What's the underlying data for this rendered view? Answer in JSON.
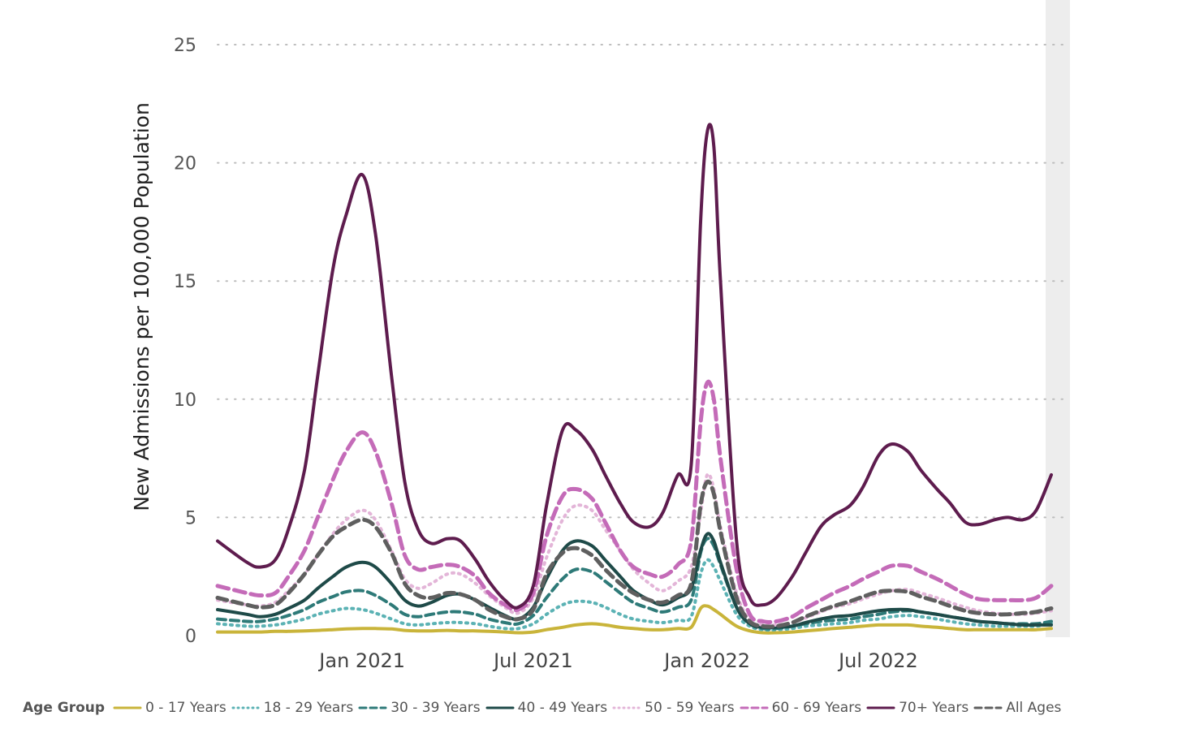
{
  "chart_data": {
    "type": "line",
    "title": "",
    "xlabel": "",
    "ylabel": "New Admissions per 100,000 Population",
    "ylim": [
      0,
      25
    ],
    "yticks": [
      0,
      5,
      10,
      15,
      20,
      25
    ],
    "xlim": [
      "2020-08-01",
      "2022-12-31"
    ],
    "xticks": [
      {
        "label": "Jan 2021",
        "date": "2021-01-01"
      },
      {
        "label": "Jul 2021",
        "date": "2021-07-01"
      },
      {
        "label": "Jan 2022",
        "date": "2022-01-01"
      },
      {
        "label": "Jul 2022",
        "date": "2022-07-01"
      }
    ],
    "grid": "horizontal dotted",
    "legend_position": "bottom",
    "legend_title": "Age Group",
    "x": [
      "2020-08-01",
      "2020-09-01",
      "2020-09-15",
      "2020-10-01",
      "2020-10-15",
      "2020-11-01",
      "2020-11-15",
      "2020-12-01",
      "2020-12-15",
      "2021-01-01",
      "2021-01-15",
      "2021-02-01",
      "2021-02-15",
      "2021-03-01",
      "2021-03-15",
      "2021-04-01",
      "2021-04-15",
      "2021-05-01",
      "2021-05-15",
      "2021-06-01",
      "2021-06-15",
      "2021-07-01",
      "2021-07-15",
      "2021-08-01",
      "2021-08-15",
      "2021-09-01",
      "2021-09-15",
      "2021-10-01",
      "2021-10-15",
      "2021-11-01",
      "2021-11-15",
      "2021-12-01",
      "2021-12-15",
      "2021-12-25",
      "2022-01-01",
      "2022-01-08",
      "2022-01-15",
      "2022-02-01",
      "2022-02-15",
      "2022-03-01",
      "2022-03-15",
      "2022-04-01",
      "2022-04-15",
      "2022-05-01",
      "2022-05-15",
      "2022-06-01",
      "2022-06-15",
      "2022-07-01",
      "2022-07-15",
      "2022-08-01",
      "2022-08-15",
      "2022-09-01",
      "2022-09-15",
      "2022-10-01",
      "2022-10-15",
      "2022-11-01",
      "2022-11-15",
      "2022-12-01",
      "2022-12-15",
      "2022-12-31"
    ],
    "series": [
      {
        "name": "0 - 17 Years",
        "color": "#C9B43A",
        "dash": "solid",
        "width": 4,
        "values": [
          0.15,
          0.15,
          0.15,
          0.18,
          0.18,
          0.2,
          0.22,
          0.25,
          0.28,
          0.3,
          0.3,
          0.28,
          0.22,
          0.2,
          0.2,
          0.22,
          0.2,
          0.2,
          0.18,
          0.15,
          0.12,
          0.15,
          0.25,
          0.35,
          0.45,
          0.5,
          0.45,
          0.35,
          0.3,
          0.25,
          0.25,
          0.3,
          0.35,
          1.15,
          1.25,
          1.1,
          0.9,
          0.4,
          0.2,
          0.12,
          0.12,
          0.15,
          0.2,
          0.25,
          0.3,
          0.35,
          0.4,
          0.45,
          0.45,
          0.45,
          0.4,
          0.35,
          0.3,
          0.25,
          0.25,
          0.25,
          0.25,
          0.25,
          0.25,
          0.3
        ]
      },
      {
        "name": "18 - 29 Years",
        "color": "#5BB2B4",
        "dash": "2 6",
        "width": 4,
        "values": [
          0.5,
          0.4,
          0.4,
          0.45,
          0.55,
          0.7,
          0.9,
          1.05,
          1.15,
          1.1,
          0.95,
          0.7,
          0.5,
          0.45,
          0.5,
          0.55,
          0.55,
          0.5,
          0.4,
          0.3,
          0.3,
          0.5,
          0.9,
          1.3,
          1.45,
          1.4,
          1.2,
          0.9,
          0.7,
          0.6,
          0.55,
          0.65,
          0.8,
          2.6,
          3.2,
          2.9,
          2.3,
          0.9,
          0.4,
          0.25,
          0.25,
          0.3,
          0.4,
          0.45,
          0.5,
          0.55,
          0.65,
          0.7,
          0.8,
          0.85,
          0.8,
          0.7,
          0.6,
          0.5,
          0.45,
          0.4,
          0.4,
          0.4,
          0.4,
          0.5
        ]
      },
      {
        "name": "30 - 39 Years",
        "color": "#2E7A78",
        "dash": "10 6",
        "width": 4,
        "values": [
          0.7,
          0.6,
          0.6,
          0.7,
          0.85,
          1.1,
          1.4,
          1.65,
          1.85,
          1.9,
          1.7,
          1.3,
          0.9,
          0.8,
          0.9,
          1.0,
          1.0,
          0.9,
          0.7,
          0.55,
          0.5,
          0.85,
          1.6,
          2.4,
          2.8,
          2.7,
          2.3,
          1.8,
          1.4,
          1.15,
          1.0,
          1.2,
          1.5,
          3.5,
          4.1,
          3.8,
          3.0,
          1.2,
          0.5,
          0.3,
          0.3,
          0.4,
          0.5,
          0.6,
          0.65,
          0.7,
          0.8,
          0.9,
          1.0,
          1.05,
          1.0,
          0.9,
          0.8,
          0.7,
          0.6,
          0.55,
          0.5,
          0.5,
          0.5,
          0.6
        ]
      },
      {
        "name": "40 - 49 Years",
        "color": "#1E4A48",
        "dash": "solid",
        "width": 4,
        "values": [
          1.1,
          0.9,
          0.8,
          0.9,
          1.15,
          1.5,
          2.0,
          2.5,
          2.9,
          3.1,
          2.9,
          2.2,
          1.5,
          1.25,
          1.4,
          1.7,
          1.75,
          1.5,
          1.2,
          0.85,
          0.7,
          1.2,
          2.4,
          3.6,
          4.0,
          3.8,
          3.2,
          2.5,
          1.9,
          1.5,
          1.3,
          1.6,
          2.0,
          3.6,
          4.3,
          4.0,
          3.1,
          1.2,
          0.5,
          0.35,
          0.35,
          0.4,
          0.55,
          0.7,
          0.8,
          0.85,
          0.95,
          1.05,
          1.1,
          1.1,
          1.0,
          0.9,
          0.8,
          0.7,
          0.6,
          0.55,
          0.5,
          0.45,
          0.45,
          0.45
        ]
      },
      {
        "name": "50 - 59 Years",
        "color": "#E3B5D8",
        "dash": "2 6",
        "width": 4,
        "values": [
          1.5,
          1.3,
          1.25,
          1.4,
          1.9,
          2.6,
          3.4,
          4.3,
          4.9,
          5.3,
          4.9,
          3.6,
          2.4,
          2.0,
          2.2,
          2.6,
          2.6,
          2.2,
          1.7,
          1.2,
          0.95,
          1.6,
          3.3,
          4.9,
          5.5,
          5.3,
          4.5,
          3.6,
          2.8,
          2.2,
          1.9,
          2.3,
          2.9,
          5.2,
          6.8,
          6.2,
          4.6,
          1.8,
          0.65,
          0.45,
          0.45,
          0.55,
          0.75,
          1.0,
          1.2,
          1.35,
          1.55,
          1.75,
          1.9,
          1.95,
          1.8,
          1.6,
          1.4,
          1.2,
          1.05,
          0.95,
          0.9,
          0.9,
          0.95,
          1.05
        ]
      },
      {
        "name": "60 - 69 Years",
        "color": "#C46BB8",
        "dash": "14 7",
        "width": 5,
        "values": [
          2.1,
          1.8,
          1.7,
          1.8,
          2.5,
          3.6,
          5.0,
          6.6,
          7.8,
          8.6,
          7.8,
          5.6,
          3.4,
          2.8,
          2.9,
          3.0,
          2.9,
          2.5,
          1.8,
          1.3,
          1.1,
          1.8,
          4.2,
          5.9,
          6.2,
          5.8,
          4.8,
          3.6,
          2.9,
          2.6,
          2.5,
          3.0,
          4.0,
          9.0,
          10.7,
          10.0,
          7.5,
          2.8,
          0.9,
          0.6,
          0.6,
          0.8,
          1.15,
          1.5,
          1.8,
          2.1,
          2.4,
          2.7,
          2.95,
          2.95,
          2.7,
          2.4,
          2.1,
          1.75,
          1.55,
          1.5,
          1.5,
          1.5,
          1.6,
          2.1
        ]
      },
      {
        "name": "70+ Years",
        "color": "#5E1C4E",
        "dash": "solid",
        "width": 4,
        "values": [
          4.0,
          3.1,
          2.9,
          3.2,
          4.5,
          7.0,
          11.0,
          15.5,
          17.8,
          19.5,
          17.0,
          11.0,
          6.5,
          4.5,
          3.9,
          4.1,
          4.0,
          3.2,
          2.3,
          1.5,
          1.2,
          2.1,
          5.5,
          8.7,
          8.7,
          7.9,
          6.8,
          5.6,
          4.8,
          4.6,
          5.2,
          6.8,
          7.2,
          17.5,
          21.3,
          20.7,
          15.0,
          4.0,
          1.6,
          1.3,
          1.6,
          2.5,
          3.5,
          4.6,
          5.1,
          5.5,
          6.3,
          7.6,
          8.1,
          7.8,
          7.0,
          6.2,
          5.6,
          4.8,
          4.7,
          4.9,
          5.0,
          4.9,
          5.3,
          6.8
        ]
      },
      {
        "name": "All Ages",
        "color": "#5F5F5F",
        "dash": "12 7",
        "width": 5,
        "values": [
          1.6,
          1.3,
          1.2,
          1.3,
          1.8,
          2.6,
          3.4,
          4.2,
          4.6,
          4.9,
          4.6,
          3.5,
          2.2,
          1.7,
          1.6,
          1.8,
          1.75,
          1.5,
          1.1,
          0.8,
          0.7,
          1.1,
          2.6,
          3.5,
          3.7,
          3.4,
          2.8,
          2.2,
          1.8,
          1.5,
          1.4,
          1.7,
          2.2,
          5.5,
          6.5,
          6.0,
          4.4,
          1.6,
          0.6,
          0.4,
          0.4,
          0.55,
          0.8,
          1.05,
          1.25,
          1.45,
          1.65,
          1.85,
          1.9,
          1.85,
          1.65,
          1.45,
          1.25,
          1.05,
          0.95,
          0.9,
          0.9,
          0.95,
          1.0,
          1.15
        ]
      }
    ]
  }
}
